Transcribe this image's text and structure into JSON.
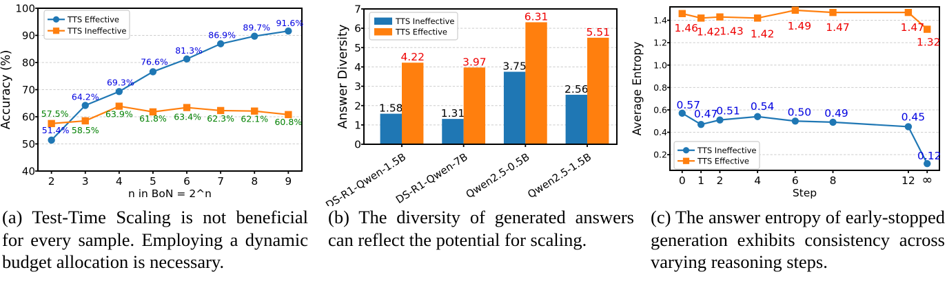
{
  "colors": {
    "series_blue": "#1f77b4",
    "series_orange": "#ff7f0e",
    "label_blue": "#0000e0",
    "label_green": "#008000",
    "label_red": "#ee0000",
    "label_black": "#000000",
    "grid": "#cccccc"
  },
  "figure": {
    "captions": [
      {
        "lines": [
          "(a) Test-Time Scaling is not beneficial",
          "for every sample. Employing a dynamic",
          "budget allocation is necessary."
        ]
      },
      {
        "lines": [
          "(b) The diversity of generated answers",
          "can reflect the potential for scaling."
        ]
      },
      {
        "lines": [
          "(c) The answer entropy of early-stopped",
          "generation exhibits consistency across",
          "varying reasoning steps."
        ]
      }
    ]
  },
  "chart_data": [
    {
      "type": "line",
      "xlabel": "n in BoN = 2^n",
      "ylabel": "Accuracy (%)",
      "x": [
        2,
        3,
        4,
        5,
        6,
        7,
        8,
        9
      ],
      "xlim": [
        1.6,
        9.4
      ],
      "ylim": [
        40,
        100
      ],
      "yticks": [
        40,
        50,
        60,
        70,
        80,
        90,
        100
      ],
      "grid": "dashed-horizontal",
      "legend_position": "upper-left",
      "series": [
        {
          "name": "TTS Effective",
          "marker": "circle",
          "color_key": "series_blue",
          "label_color_key": "label_blue",
          "values": [
            51.4,
            64.2,
            69.3,
            76.6,
            81.3,
            86.9,
            89.7,
            91.6
          ],
          "labels": [
            "51.4%",
            "64.2%",
            "69.3%",
            "76.6%",
            "81.3%",
            "86.9%",
            "89.7%",
            "91.6%"
          ]
        },
        {
          "name": "TTS Ineffective",
          "marker": "square",
          "color_key": "series_orange",
          "label_color_key": "label_green",
          "values": [
            57.5,
            58.5,
            63.9,
            61.8,
            63.4,
            62.3,
            62.1,
            60.8
          ],
          "labels": [
            "57.5%",
            "58.5%",
            "63.9%",
            "61.8%",
            "63.4%",
            "62.3%",
            "62.1%",
            "60.8%"
          ]
        }
      ]
    },
    {
      "type": "bar",
      "ylabel": "Answer Diversity",
      "categories": [
        "DS-R1-Qwen-1.5B",
        "DS-R1-Qwen-7B",
        "Qwen2.5-0.5B",
        "Qwen2.5-1.5B"
      ],
      "ylim": [
        0,
        7
      ],
      "yticks": [
        0,
        1,
        2,
        3,
        4,
        5,
        6,
        7
      ],
      "grid": "dashed-horizontal",
      "legend_position": "upper-left",
      "series": [
        {
          "name": "TTS Ineffective",
          "color_key": "series_blue",
          "label_color_key": "label_black",
          "values": [
            1.58,
            1.31,
            3.75,
            2.56
          ]
        },
        {
          "name": "TTS Effective",
          "color_key": "series_orange",
          "label_color_key": "label_red",
          "values": [
            4.22,
            3.97,
            6.31,
            5.51
          ]
        }
      ]
    },
    {
      "type": "line",
      "xlabel": "Step",
      "ylabel": "Average Entropy",
      "xtick_labels": [
        "0",
        "1",
        "2",
        "4",
        "6",
        "8",
        "12",
        "∞"
      ],
      "x": [
        0,
        1,
        2,
        4,
        6,
        8,
        12,
        13
      ],
      "xlim": [
        -0.65,
        13.65
      ],
      "ylim": [
        0.06,
        1.52
      ],
      "yticks": [
        0.2,
        0.4,
        0.6,
        0.8,
        1.0,
        1.2,
        1.4
      ],
      "grid": "dashed-horizontal",
      "legend_position": "lower-left",
      "series": [
        {
          "name": "TTS Ineffective",
          "marker": "circle",
          "color_key": "series_blue",
          "label_color_key": "label_blue",
          "values": [
            0.57,
            0.47,
            0.51,
            0.54,
            0.5,
            0.49,
            0.45,
            0.12
          ],
          "labels": [
            "0.57",
            "0.47",
            "0.51",
            "0.54",
            "0.50",
            "0.49",
            "0.45",
            "0.12"
          ]
        },
        {
          "name": "TTS Effective",
          "marker": "square",
          "color_key": "series_orange",
          "label_color_key": "label_red",
          "values": [
            1.46,
            1.42,
            1.43,
            1.42,
            1.49,
            1.47,
            1.47,
            1.32
          ],
          "labels": [
            "1.46",
            "1.42",
            "1.43",
            "1.42",
            "1.49",
            "1.47",
            "1.47",
            "1.32"
          ]
        }
      ]
    }
  ]
}
